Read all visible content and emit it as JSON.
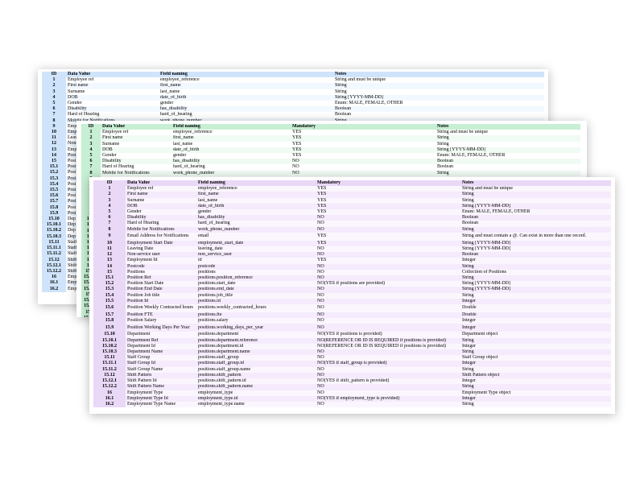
{
  "sheets": {
    "blue": {
      "headers": [
        "ID",
        "Data Value",
        "Field naming",
        "",
        "Notes"
      ],
      "rows": [
        {
          "id": "1",
          "value": "Employee ref",
          "field": "employee_reference",
          "mandatory": "",
          "notes": "String and must be unique"
        },
        {
          "id": "2",
          "value": "First name",
          "field": "first_name",
          "mandatory": "",
          "notes": "String"
        },
        {
          "id": "3",
          "value": "Surname",
          "field": "last_name",
          "mandatory": "",
          "notes": "String"
        },
        {
          "id": "4",
          "value": "DOB",
          "field": "date_of_birth",
          "mandatory": "",
          "notes": "String [YYYY-MM-DD]"
        },
        {
          "id": "5",
          "value": "Gender",
          "field": "gender",
          "mandatory": "",
          "notes": "Enum: MALE, FEMALE, OTHER"
        },
        {
          "id": "6",
          "value": "Disability",
          "field": "has_disability",
          "mandatory": "",
          "notes": "Boolean"
        },
        {
          "id": "7",
          "value": "Hard of Hearing",
          "field": "hard_of_hearing",
          "mandatory": "",
          "notes": "Boolean"
        },
        {
          "id": "8",
          "value": "Mobile for Notifications",
          "field": "work_phone_number",
          "mandatory": "",
          "notes": "String"
        },
        {
          "id": "9",
          "value": "Emp",
          "field": "",
          "mandatory": "",
          "notes": ""
        },
        {
          "id": "10",
          "value": "Emp",
          "field": "",
          "mandatory": "",
          "notes": ""
        },
        {
          "id": "11",
          "value": "Leav",
          "field": "",
          "mandatory": "",
          "notes": ""
        },
        {
          "id": "12",
          "value": "Non-",
          "field": "",
          "mandatory": "",
          "notes": ""
        },
        {
          "id": "13",
          "value": "Emp",
          "field": "",
          "mandatory": "",
          "notes": ""
        },
        {
          "id": "14",
          "value": "Post",
          "field": "",
          "mandatory": "",
          "notes": ""
        },
        {
          "id": "15",
          "value": "Posi",
          "field": "",
          "mandatory": "",
          "notes": ""
        },
        {
          "id": "15.1",
          "value": "Posi",
          "field": "",
          "mandatory": "",
          "notes": ""
        },
        {
          "id": "15.2",
          "value": "Posi",
          "field": "",
          "mandatory": "",
          "notes": ""
        },
        {
          "id": "15.3",
          "value": "Posi",
          "field": "",
          "mandatory": "",
          "notes": ""
        },
        {
          "id": "15.4",
          "value": "Posi",
          "field": "",
          "mandatory": "",
          "notes": ""
        },
        {
          "id": "15.5",
          "value": "Posi",
          "field": "",
          "mandatory": "",
          "notes": ""
        },
        {
          "id": "15.6",
          "value": "Posi",
          "field": "",
          "mandatory": "",
          "notes": ""
        },
        {
          "id": "15.7",
          "value": "Posi",
          "field": "",
          "mandatory": "",
          "notes": ""
        },
        {
          "id": "15.8",
          "value": "Posi",
          "field": "",
          "mandatory": "",
          "notes": ""
        },
        {
          "id": "15.9",
          "value": "Posi",
          "field": "",
          "mandatory": "",
          "notes": ""
        },
        {
          "id": "15.10",
          "value": "Dep",
          "field": "",
          "mandatory": "",
          "notes": ""
        },
        {
          "id": "15.10.1",
          "value": "Dep",
          "field": "",
          "mandatory": "",
          "notes": ""
        },
        {
          "id": "15.10.2",
          "value": "Dep",
          "field": "",
          "mandatory": "",
          "notes": ""
        },
        {
          "id": "15.10.3",
          "value": "Dep",
          "field": "",
          "mandatory": "",
          "notes": ""
        },
        {
          "id": "15.11",
          "value": "Staff",
          "field": "",
          "mandatory": "",
          "notes": ""
        },
        {
          "id": "15.11.1",
          "value": "Staff",
          "field": "",
          "mandatory": "",
          "notes": ""
        },
        {
          "id": "15.11.2",
          "value": "Staff",
          "field": "",
          "mandatory": "",
          "notes": ""
        },
        {
          "id": "15.12",
          "value": "Shift",
          "field": "",
          "mandatory": "",
          "notes": ""
        },
        {
          "id": "15.12.1",
          "value": "Shift",
          "field": "",
          "mandatory": "",
          "notes": ""
        },
        {
          "id": "15.12.2",
          "value": "Shift",
          "field": "",
          "mandatory": "",
          "notes": ""
        },
        {
          "id": "16",
          "value": "Emp",
          "field": "",
          "mandatory": "",
          "notes": ""
        },
        {
          "id": "16.1",
          "value": "Emp",
          "field": "",
          "mandatory": "",
          "notes": ""
        },
        {
          "id": "16.2",
          "value": "Emp",
          "field": "",
          "mandatory": "",
          "notes": ""
        }
      ]
    },
    "green": {
      "headers": [
        "ID",
        "Data Value",
        "Field naming",
        "Mandatory",
        "Notes"
      ],
      "rows": [
        {
          "id": "1",
          "value": "Employee ref",
          "field": "employee_reference",
          "mandatory": "YES",
          "notes": "String and must be unique"
        },
        {
          "id": "2",
          "value": "First name",
          "field": "first_name",
          "mandatory": "YES",
          "notes": "String"
        },
        {
          "id": "3",
          "value": "Surname",
          "field": "last_name",
          "mandatory": "YES",
          "notes": "String"
        },
        {
          "id": "4",
          "value": "DOB",
          "field": "date_of_birth",
          "mandatory": "YES",
          "notes": "String [YYYY-MM-DD]"
        },
        {
          "id": "5",
          "value": "Gender",
          "field": "gender",
          "mandatory": "YES",
          "notes": "Enum: MALE, FEMALE, OTHER"
        },
        {
          "id": "6",
          "value": "Disability",
          "field": "has_disability",
          "mandatory": "NO",
          "notes": "Boolean"
        },
        {
          "id": "7",
          "value": "Hard of Hearing",
          "field": "hard_of_hearing",
          "mandatory": "NO",
          "notes": "Boolean"
        },
        {
          "id": "8",
          "value": "Mobile for Notifications",
          "field": "work_phone_number",
          "mandatory": "NO",
          "notes": "String"
        }
      ],
      "id_column": [
        "9",
        "10",
        "11",
        "12",
        "13",
        "14",
        "15",
        "15.1",
        "15.2",
        "15.3",
        "15.4",
        "15.5",
        "15.6",
        "15.7",
        "15.8",
        "15.9",
        "15.10",
        "15.10.1",
        "15.10.2",
        "15.10.3",
        "15.11",
        "15.11.1",
        "15.11.2",
        "15.12",
        "15.12.1",
        "15.12.2",
        "16",
        "16.1",
        "16.2"
      ]
    },
    "purple": {
      "headers": [
        "ID",
        "Data Value",
        "Field naming",
        "Mandatory",
        "Notes"
      ],
      "rows": [
        {
          "id": "1",
          "value": "Employee ref",
          "field": "employee_reference",
          "mandatory": "YES",
          "notes": "String and must be unique"
        },
        {
          "id": "2",
          "value": "First name",
          "field": "first_name",
          "mandatory": "YES",
          "notes": "String"
        },
        {
          "id": "3",
          "value": "Surname",
          "field": "last_name",
          "mandatory": "YES",
          "notes": "String"
        },
        {
          "id": "4",
          "value": "DOB",
          "field": "date_of_birth",
          "mandatory": "YES",
          "notes": "String [YYYY-MM-DD]"
        },
        {
          "id": "5",
          "value": "Gender",
          "field": "gender",
          "mandatory": "YES",
          "notes": "Enum: MALE, FEMALE, OTHER"
        },
        {
          "id": "6",
          "value": "Disability",
          "field": "has_disability",
          "mandatory": "NO",
          "notes": "Boolean"
        },
        {
          "id": "7",
          "value": "Hard of Hearing",
          "field": "hard_of_hearing",
          "mandatory": "NO",
          "notes": "Boolean"
        },
        {
          "id": "8",
          "value": "Mobile for Notifications",
          "field": "work_phone_number",
          "mandatory": "NO",
          "notes": "String"
        },
        {
          "id": "9",
          "value": "Email Address for Notifications",
          "field": "email",
          "mandatory": "YES",
          "notes": "String and must contain a @. Can exist in more than one record.",
          "tall": true
        },
        {
          "id": "10",
          "value": "Employment Start Date",
          "field": "employment_start_date",
          "mandatory": "YES",
          "notes": "String [YYYY-MM-DD]"
        },
        {
          "id": "11",
          "value": "Leaving Date",
          "field": "leaving_date",
          "mandatory": "NO",
          "notes": "String [YYYY-MM-DD]"
        },
        {
          "id": "12",
          "value": "Non-service user",
          "field": "non_service_user",
          "mandatory": "NO",
          "notes": "Boolean"
        },
        {
          "id": "13",
          "value": "Employment Id",
          "field": "id",
          "mandatory": "YES",
          "notes": "Integer"
        },
        {
          "id": "14",
          "value": "Postcode",
          "field": "postcode",
          "mandatory": "NO",
          "notes": "String"
        },
        {
          "id": "15",
          "value": "Positions",
          "field": "positions",
          "mandatory": "NO",
          "notes": "Collection of Positions"
        },
        {
          "id": "15.1",
          "value": "Position Ref",
          "field": "positions.position_reference",
          "mandatory": "NO",
          "notes": "String"
        },
        {
          "id": "15.2",
          "value": "Position Start Date",
          "field": "positions.start_date",
          "mandatory": "NO(YES if positions are provided)",
          "notes": "String [YYYY-MM-DD]"
        },
        {
          "id": "15.3",
          "value": "Position End Date",
          "field": "positions.end_date",
          "mandatory": "NO",
          "notes": "String [YYYY-MM-DD]"
        },
        {
          "id": "15.4",
          "value": "Position Job title",
          "field": "positions.job_title",
          "mandatory": "NO",
          "notes": "String"
        },
        {
          "id": "15.5",
          "value": "Position Id",
          "field": "positions.id",
          "mandatory": "NO",
          "notes": "Integer"
        },
        {
          "id": "15.6",
          "value": "Position Weekly Contracted hours",
          "field": "positions.weekly_contracted_hours",
          "mandatory": "NO",
          "notes": "Double",
          "tall": true
        },
        {
          "id": "15.7",
          "value": "Position FTE",
          "field": "positions.fte",
          "mandatory": "NO",
          "notes": "Double"
        },
        {
          "id": "15.8",
          "value": "Position Salary",
          "field": "positions.salary",
          "mandatory": "NO",
          "notes": "Integer"
        },
        {
          "id": "15.9",
          "value": "Position Working Days Per Year",
          "field": "positions.working_days_per_year",
          "mandatory": "NO",
          "notes": "Integer",
          "tall": true
        },
        {
          "id": "15.10",
          "value": "Department",
          "field": "positions.department",
          "mandatory": "NO(YES if positions is provided)",
          "notes": "Department object"
        },
        {
          "id": "15.10.1",
          "value": "Department Ref",
          "field": "positions.department.reference",
          "mandatory": "NO(REFERENCE OR ID IS REQUIRED if positions is provided)",
          "notes": "String"
        },
        {
          "id": "15.10.2",
          "value": "Department Id",
          "field": "positions.department.id",
          "mandatory": "NO(REFERENCE OR ID IS REQUIRED if positions is provided)",
          "notes": "Integer"
        },
        {
          "id": "15.10.3",
          "value": "Department Name",
          "field": "positions.department.name",
          "mandatory": "NO",
          "notes": "String"
        },
        {
          "id": "15.11",
          "value": "Staff Group",
          "field": "positions.staff_group",
          "mandatory": "NO",
          "notes": "Staff Group object"
        },
        {
          "id": "15.11.1",
          "value": "Staff Group Id",
          "field": "positions.staff_group.id",
          "mandatory": "NO(YES if staff_group is provided)",
          "notes": "Integer"
        },
        {
          "id": "15.11.2",
          "value": "Staff Group Name",
          "field": "positions.staff_group.name",
          "mandatory": "NO",
          "notes": "String"
        },
        {
          "id": "15.12",
          "value": "Shift Pattern",
          "field": "positions.shift_pattern",
          "mandatory": "NO",
          "notes": "Shift Pattern object"
        },
        {
          "id": "15.12.1",
          "value": "Shift Pattern Id",
          "field": "positions.shift_pattern.id",
          "mandatory": "NO(YES if shift_pattern is provided)",
          "notes": "Integer"
        },
        {
          "id": "15.12.2",
          "value": "Shift Pattern Name",
          "field": "positions.shift_pattern.name",
          "mandatory": "NO",
          "notes": "String"
        },
        {
          "id": "16",
          "value": "Employment Type",
          "field": "employment_type",
          "mandatory": "NO",
          "notes": "Employment Type object"
        },
        {
          "id": "16.1",
          "value": "Employment Type Id",
          "field": "employment_type.id",
          "mandatory": "NO(YES if employment_type is provided)",
          "notes": "Integer"
        },
        {
          "id": "16.2",
          "value": "Employment Type Name",
          "field": "employment_type.name",
          "mandatory": "NO",
          "notes": "String"
        }
      ]
    }
  },
  "colors": {
    "blue_header": "#cfe4fb",
    "green_header": "#c6efd4",
    "purple_header": "#ead8f7"
  }
}
